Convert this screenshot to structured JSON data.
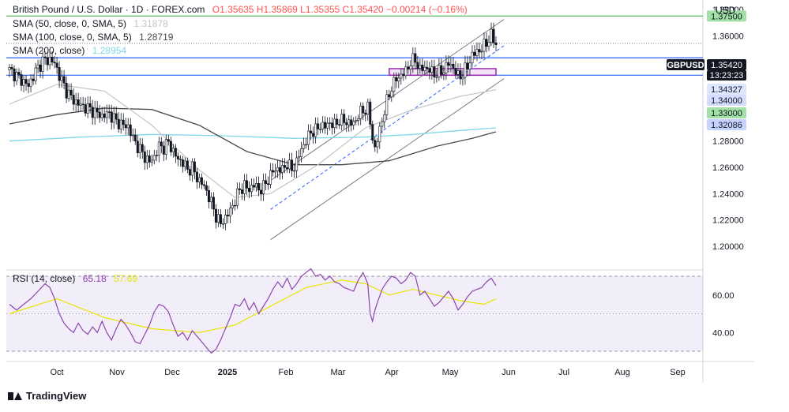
{
  "header": {
    "title": "British Pound / U.S. Dollar · 1D · FOREX.com",
    "ohlc": "O1.35635  H1.35869  L1.35355  C1.35420  −0.00214 (−0.16%)",
    "ohlc_color": "#ff5252"
  },
  "indicators": [
    {
      "label": "SMA (50, close, 0, SMA, 5)",
      "value": "1.31878",
      "color": "#c4c4c4"
    },
    {
      "label": "SMA (100, close, 0, SMA, 5)",
      "value": "1.28719",
      "color": "#4a4a4a"
    },
    {
      "label": "SMA (200, close)",
      "value": "1.28954",
      "color": "#7fd8e8"
    }
  ],
  "rsi": {
    "label": "RSI (14, close)",
    "value": "65.18",
    "ma_value": "57.69",
    "color": "#8e44ad",
    "ma_color": "#e6e600"
  },
  "currency": "USD",
  "footer": {
    "brand": "TradingView"
  },
  "chart_data": {
    "type": "candlestick",
    "symbol": "GBPUSD",
    "countdown": "13:23:23",
    "last_price": 1.3542,
    "price_axis": {
      "ticks": [
        "1.38000",
        "1.36000",
        "1.28000",
        "1.26000",
        "1.24000",
        "1.22000",
        "1.20000"
      ],
      "ylim": [
        1.2,
        1.38
      ]
    },
    "price_labels": [
      {
        "value": 1.375,
        "text": "1.37500",
        "bg": "#a3e0a6",
        "fg": "#131722"
      },
      {
        "value": 1.3542,
        "text": "1.35420",
        "bg": "#131722",
        "fg": "#ffffff"
      },
      {
        "value": 1.34327,
        "text": "1.34327",
        "bg": "#dde6ff",
        "fg": "#131722"
      },
      {
        "value": 1.34,
        "text": "1.34000",
        "bg": "#d3dcff",
        "fg": "#131722"
      },
      {
        "value": 1.33,
        "text": "1.33000",
        "bg": "#a3e0a6",
        "fg": "#131722"
      },
      {
        "value": 1.32086,
        "text": "1.32086",
        "bg": "#c7d3ff",
        "fg": "#131722"
      }
    ],
    "time_axis": [
      "Oct",
      "Nov",
      "Dec",
      "2025",
      "Feb",
      "Mar",
      "Apr",
      "May",
      "Jun",
      "Jul",
      "Aug",
      "Sep"
    ],
    "close_path": [
      [
        0,
        1.334
      ],
      [
        4,
        1.328
      ],
      [
        8,
        1.322
      ],
      [
        11,
        1.333
      ],
      [
        14,
        1.341
      ],
      [
        17,
        1.342
      ],
      [
        19,
        1.339
      ],
      [
        21,
        1.33
      ],
      [
        24,
        1.318
      ],
      [
        27,
        1.311
      ],
      [
        30,
        1.307
      ],
      [
        33,
        1.305
      ],
      [
        36,
        1.302
      ],
      [
        39,
        1.299
      ],
      [
        42,
        1.301
      ],
      [
        45,
        1.295
      ],
      [
        48,
        1.292
      ],
      [
        50,
        1.291
      ],
      [
        52,
        1.282
      ],
      [
        54,
        1.276
      ],
      [
        57,
        1.268
      ],
      [
        59,
        1.264
      ],
      [
        61,
        1.268
      ],
      [
        63,
        1.276
      ],
      [
        65,
        1.275
      ],
      [
        67,
        1.279
      ],
      [
        69,
        1.272
      ],
      [
        71,
        1.266
      ],
      [
        73,
        1.264
      ],
      [
        75,
        1.258
      ],
      [
        77,
        1.26
      ],
      [
        79,
        1.252
      ],
      [
        81,
        1.248
      ],
      [
        83,
        1.242
      ],
      [
        85,
        1.233
      ],
      [
        87,
        1.223
      ],
      [
        89,
        1.217
      ],
      [
        91,
        1.222
      ],
      [
        93,
        1.227
      ],
      [
        95,
        1.235
      ],
      [
        97,
        1.243
      ],
      [
        99,
        1.246
      ],
      [
        101,
        1.243
      ],
      [
        103,
        1.247
      ],
      [
        105,
        1.243
      ],
      [
        107,
        1.245
      ],
      [
        109,
        1.251
      ],
      [
        111,
        1.257
      ],
      [
        113,
        1.259
      ],
      [
        115,
        1.258
      ],
      [
        117,
        1.263
      ],
      [
        119,
        1.258
      ],
      [
        121,
        1.264
      ],
      [
        123,
        1.274
      ],
      [
        125,
        1.28
      ],
      [
        127,
        1.287
      ],
      [
        129,
        1.288
      ],
      [
        131,
        1.292
      ],
      [
        133,
        1.291
      ],
      [
        135,
        1.294
      ],
      [
        137,
        1.292
      ],
      [
        139,
        1.296
      ],
      [
        141,
        1.295
      ],
      [
        143,
        1.294
      ],
      [
        145,
        1.293
      ],
      [
        147,
        1.3
      ],
      [
        149,
        1.303
      ],
      [
        151,
        1.305
      ],
      [
        152,
        1.294
      ],
      [
        153,
        1.282
      ],
      [
        154,
        1.274
      ],
      [
        155,
        1.281
      ],
      [
        157,
        1.296
      ],
      [
        159,
        1.31
      ],
      [
        161,
        1.321
      ],
      [
        163,
        1.327
      ],
      [
        165,
        1.33
      ],
      [
        167,
        1.333
      ],
      [
        169,
        1.34
      ],
      [
        171,
        1.342
      ],
      [
        173,
        1.334
      ],
      [
        175,
        1.336
      ],
      [
        177,
        1.334
      ],
      [
        179,
        1.331
      ],
      [
        181,
        1.332
      ],
      [
        183,
        1.334
      ],
      [
        185,
        1.339
      ],
      [
        187,
        1.336
      ],
      [
        189,
        1.329
      ],
      [
        191,
        1.331
      ],
      [
        193,
        1.337
      ],
      [
        195,
        1.345
      ],
      [
        197,
        1.348
      ],
      [
        199,
        1.35
      ],
      [
        201,
        1.355
      ],
      [
        203,
        1.36
      ],
      [
        205,
        1.3542
      ]
    ],
    "sma50": [
      [
        0,
        1.308
      ],
      [
        20,
        1.323
      ],
      [
        40,
        1.318
      ],
      [
        60,
        1.292
      ],
      [
        80,
        1.258
      ],
      [
        95,
        1.237
      ],
      [
        110,
        1.24
      ],
      [
        130,
        1.262
      ],
      [
        150,
        1.29
      ],
      [
        170,
        1.304
      ],
      [
        190,
        1.314
      ],
      [
        205,
        1.319
      ]
    ],
    "sma100": [
      [
        0,
        1.293
      ],
      [
        20,
        1.3
      ],
      [
        40,
        1.305
      ],
      [
        60,
        1.304
      ],
      [
        80,
        1.292
      ],
      [
        100,
        1.272
      ],
      [
        120,
        1.262
      ],
      [
        140,
        1.262
      ],
      [
        160,
        1.265
      ],
      [
        180,
        1.276
      ],
      [
        195,
        1.282
      ],
      [
        205,
        1.287
      ]
    ],
    "sma200": [
      [
        0,
        1.28
      ],
      [
        30,
        1.283
      ],
      [
        60,
        1.285
      ],
      [
        90,
        1.284
      ],
      [
        120,
        1.282
      ],
      [
        150,
        1.283
      ],
      [
        170,
        1.285
      ],
      [
        190,
        1.288
      ],
      [
        205,
        1.29
      ]
    ],
    "channel": {
      "upper": [
        [
          110,
          1.25
        ],
        [
          205,
          1.37
        ]
      ],
      "lower": [
        [
          110,
          1.205
        ],
        [
          205,
          1.325
        ]
      ],
      "mid": [
        [
          110,
          1.228
        ],
        [
          205,
          1.35
        ]
      ]
    },
    "levels": [
      {
        "value": 1.375,
        "color": "#4caf50",
        "from": 0
      },
      {
        "value": 1.34327,
        "color": "#2962ff",
        "from": 0
      },
      {
        "value": 1.33,
        "color": "#2962ff",
        "from": 0
      }
    ],
    "support_box": {
      "x": [
        160,
        205
      ],
      "y": [
        1.33,
        1.335
      ],
      "color": "#9c27b0"
    },
    "rsi_series": [
      [
        0,
        55
      ],
      [
        3,
        52
      ],
      [
        6,
        55
      ],
      [
        9,
        58
      ],
      [
        12,
        62
      ],
      [
        15,
        66
      ],
      [
        17,
        64
      ],
      [
        19,
        58
      ],
      [
        21,
        50
      ],
      [
        23,
        45
      ],
      [
        25,
        42
      ],
      [
        27,
        40
      ],
      [
        29,
        45
      ],
      [
        31,
        41
      ],
      [
        33,
        39
      ],
      [
        35,
        43
      ],
      [
        37,
        40
      ],
      [
        39,
        46
      ],
      [
        41,
        40
      ],
      [
        43,
        36
      ],
      [
        45,
        42
      ],
      [
        47,
        47
      ],
      [
        49,
        44
      ],
      [
        51,
        40
      ],
      [
        53,
        35
      ],
      [
        55,
        34
      ],
      [
        57,
        39
      ],
      [
        59,
        44
      ],
      [
        61,
        51
      ],
      [
        63,
        55
      ],
      [
        65,
        54
      ],
      [
        67,
        51
      ],
      [
        69,
        44
      ],
      [
        71,
        38
      ],
      [
        73,
        40
      ],
      [
        75,
        36
      ],
      [
        77,
        41
      ],
      [
        79,
        38
      ],
      [
        81,
        35
      ],
      [
        83,
        32
      ],
      [
        85,
        29
      ],
      [
        87,
        31
      ],
      [
        89,
        36
      ],
      [
        91,
        42
      ],
      [
        93,
        48
      ],
      [
        95,
        55
      ],
      [
        97,
        54
      ],
      [
        99,
        58
      ],
      [
        101,
        52
      ],
      [
        103,
        56
      ],
      [
        105,
        50
      ],
      [
        107,
        54
      ],
      [
        109,
        58
      ],
      [
        111,
        63
      ],
      [
        113,
        67
      ],
      [
        115,
        64
      ],
      [
        117,
        69
      ],
      [
        119,
        63
      ],
      [
        121,
        66
      ],
      [
        123,
        70
      ],
      [
        125,
        72
      ],
      [
        127,
        74
      ],
      [
        129,
        70
      ],
      [
        131,
        71
      ],
      [
        133,
        68
      ],
      [
        135,
        70
      ],
      [
        137,
        67
      ],
      [
        139,
        66
      ],
      [
        141,
        64
      ],
      [
        143,
        63
      ],
      [
        145,
        62
      ],
      [
        147,
        68
      ],
      [
        149,
        72
      ],
      [
        151,
        66
      ],
      [
        152,
        50
      ],
      [
        153,
        46
      ],
      [
        154,
        52
      ],
      [
        155,
        56
      ],
      [
        157,
        63
      ],
      [
        159,
        67
      ],
      [
        161,
        70
      ],
      [
        163,
        69
      ],
      [
        165,
        66
      ],
      [
        167,
        68
      ],
      [
        169,
        72
      ],
      [
        171,
        70
      ],
      [
        173,
        60
      ],
      [
        175,
        62
      ],
      [
        177,
        58
      ],
      [
        179,
        54
      ],
      [
        181,
        56
      ],
      [
        183,
        59
      ],
      [
        185,
        62
      ],
      [
        187,
        58
      ],
      [
        189,
        52
      ],
      [
        191,
        55
      ],
      [
        193,
        59
      ],
      [
        195,
        62
      ],
      [
        197,
        63
      ],
      [
        199,
        64
      ],
      [
        201,
        67
      ],
      [
        203,
        69
      ],
      [
        205,
        65
      ]
    ],
    "rsi_ma": [
      [
        0,
        50
      ],
      [
        20,
        58
      ],
      [
        40,
        48
      ],
      [
        60,
        42
      ],
      [
        80,
        40
      ],
      [
        95,
        44
      ],
      [
        110,
        54
      ],
      [
        125,
        64
      ],
      [
        140,
        68
      ],
      [
        150,
        66
      ],
      [
        160,
        60
      ],
      [
        170,
        63
      ],
      [
        180,
        60
      ],
      [
        190,
        57
      ],
      [
        200,
        55
      ],
      [
        205,
        58
      ]
    ],
    "rsi_axis": {
      "ticks": [
        "60.00",
        "40.00"
      ],
      "ylim": [
        25,
        80
      ],
      "band": [
        30,
        70
      ]
    }
  }
}
